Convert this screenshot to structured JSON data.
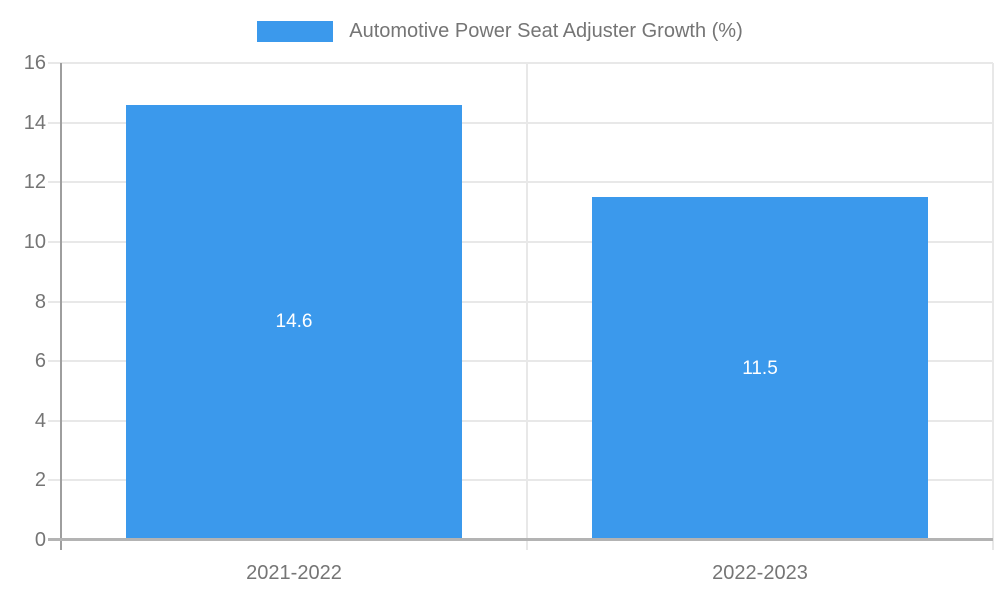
{
  "chart_data": {
    "type": "bar",
    "title": "",
    "legend_label": "Automotive Power Seat Adjuster Growth (%)",
    "legend_position": "top",
    "categories": [
      "2021-2022",
      "2022-2023"
    ],
    "values": [
      14.6,
      11.5
    ],
    "bar_labels": [
      "14.6",
      "11.5"
    ],
    "ylim": [
      0,
      16
    ],
    "yticks": [
      0,
      2,
      4,
      6,
      8,
      10,
      12,
      14,
      16
    ],
    "grid": true,
    "bar_color": "#3b99ec",
    "bar_label_color": "#ffffff",
    "axis_text_color": "#757575",
    "gridline_color": "#e8e8e8",
    "axis_line_color": "#9e9e9e",
    "baseline_color": "#b3b3b3",
    "background": "#ffffff"
  }
}
